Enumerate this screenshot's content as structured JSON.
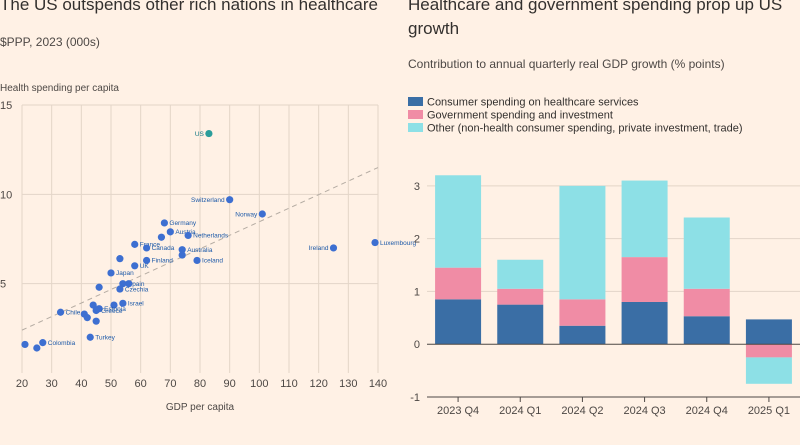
{
  "colors": {
    "background": "#fff1e5",
    "scatter_point": "#3d6fd1",
    "us_point": "#2a9d9b",
    "trend_line": "#b5aca3",
    "healthcare": "#3a6ea5",
    "government": "#f08ca5",
    "other": "#8de0e6"
  },
  "chart_data": [
    {
      "type": "scatter",
      "title": "The US outspends other rich nations in healthcare",
      "subtitle": "$PPP, 2023 (000s)",
      "xlabel": "GDP per capita",
      "ylabel": "Health spending per capita",
      "xlim": [
        20,
        140
      ],
      "ylim": [
        0,
        15
      ],
      "xticks": [
        "20",
        "30",
        "40",
        "50",
        "60",
        "70",
        "80",
        "90",
        "100",
        "110",
        "120",
        "130",
        "140"
      ],
      "yticks": [
        "5",
        "10",
        "15"
      ],
      "trend": {
        "x": [
          20,
          140
        ],
        "y": [
          2.4,
          11.5
        ]
      },
      "points": [
        {
          "x": 83,
          "y": 13.4,
          "label": "US",
          "highlight": true
        },
        {
          "x": 90,
          "y": 9.7,
          "label": "Switzerland"
        },
        {
          "x": 101,
          "y": 8.9,
          "label": "Norway"
        },
        {
          "x": 68,
          "y": 8.4,
          "label": "Germany"
        },
        {
          "x": 70,
          "y": 7.9,
          "label": "Austria"
        },
        {
          "x": 76,
          "y": 7.7,
          "label": "Netherlands"
        },
        {
          "x": 139,
          "y": 7.3,
          "label": "Luxembourg"
        },
        {
          "x": 125,
          "y": 7.0,
          "label": "Ireland"
        },
        {
          "x": 58,
          "y": 7.2,
          "label": "France"
        },
        {
          "x": 62,
          "y": 7.0,
          "label": "Canada"
        },
        {
          "x": 74,
          "y": 6.9,
          "label": "Australia"
        },
        {
          "x": 67,
          "y": 7.6,
          "label": ""
        },
        {
          "x": 74,
          "y": 6.6,
          "label": ""
        },
        {
          "x": 62,
          "y": 6.3,
          "label": "Finland"
        },
        {
          "x": 79,
          "y": 6.3,
          "label": "Iceland"
        },
        {
          "x": 58,
          "y": 6.0,
          "label": "UK"
        },
        {
          "x": 53,
          "y": 6.4,
          "label": ""
        },
        {
          "x": 50,
          "y": 5.6,
          "label": "Japan"
        },
        {
          "x": 54,
          "y": 5.0,
          "label": "Spain"
        },
        {
          "x": 56,
          "y": 5.0,
          "label": ""
        },
        {
          "x": 53,
          "y": 4.7,
          "label": "Czechia"
        },
        {
          "x": 46,
          "y": 4.8,
          "label": ""
        },
        {
          "x": 54,
          "y": 3.9,
          "label": "Israel"
        },
        {
          "x": 51,
          "y": 3.8,
          "label": ""
        },
        {
          "x": 44,
          "y": 3.8,
          "label": ""
        },
        {
          "x": 46,
          "y": 3.6,
          "label": "Estonia"
        },
        {
          "x": 33,
          "y": 3.4,
          "label": "Chile"
        },
        {
          "x": 45,
          "y": 3.5,
          "label": "Greece"
        },
        {
          "x": 41,
          "y": 3.3,
          "label": ""
        },
        {
          "x": 42,
          "y": 3.1,
          "label": ""
        },
        {
          "x": 45,
          "y": 2.9,
          "label": ""
        },
        {
          "x": 43,
          "y": 2.0,
          "label": "Turkey"
        },
        {
          "x": 21,
          "y": 1.6,
          "label": ""
        },
        {
          "x": 27,
          "y": 1.7,
          "label": "Colombia"
        },
        {
          "x": 25,
          "y": 1.4,
          "label": ""
        }
      ]
    },
    {
      "type": "bar",
      "stacked": true,
      "title_line1": "Healthcare and government spending prop up US",
      "title_line2": "growth",
      "subtitle": "Contribution to annual quarterly real GDP growth (% points)",
      "categories": [
        "2023 Q4",
        "2024 Q1",
        "2024 Q2",
        "2024 Q3",
        "2024 Q4",
        "2025 Q1"
      ],
      "ylim": [
        -1,
        3.3
      ],
      "yticks": [
        "-1",
        "0",
        "1",
        "2",
        "3"
      ],
      "legend_position": "top-left",
      "series": [
        {
          "name": "Consumer spending on healthcare services",
          "values": [
            0.85,
            0.75,
            0.35,
            0.8,
            0.53,
            0.47
          ]
        },
        {
          "name": "Government spending and investment",
          "values": [
            0.6,
            0.3,
            0.5,
            0.85,
            0.52,
            -0.25
          ]
        },
        {
          "name": "Other (non-health consumer spending, private investment, trade)",
          "values": [
            1.75,
            0.55,
            2.15,
            1.45,
            1.35,
            -0.5
          ]
        }
      ]
    }
  ]
}
